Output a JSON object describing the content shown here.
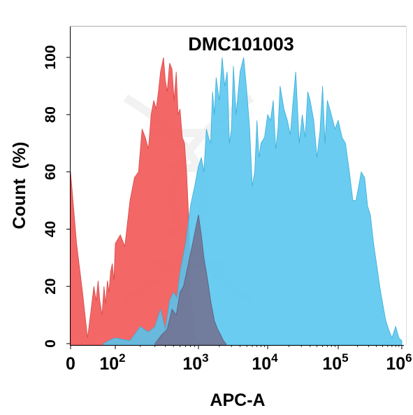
{
  "chart_data": {
    "type": "area",
    "title": "DMC101003",
    "xlabel": "APC-A",
    "ylabel": "Count  (%)",
    "x_scale": "biexponential",
    "xlim": [
      0,
      1000000
    ],
    "ylim": [
      0,
      110
    ],
    "grid": false,
    "y_ticks": [
      0,
      20,
      40,
      60,
      80,
      100
    ],
    "x_ticks": [
      {
        "value": 0,
        "base": "0",
        "exp": ""
      },
      {
        "value": 100,
        "base": "10",
        "exp": "2"
      },
      {
        "value": 1000,
        "base": "10",
        "exp": "3"
      },
      {
        "value": 10000,
        "base": "10",
        "exp": "4"
      },
      {
        "value": 100000,
        "base": "10",
        "exp": "5"
      },
      {
        "value": 1000000,
        "base": "10",
        "exp": "6"
      }
    ],
    "series": [
      {
        "color": "#f25a5a",
        "x": [
          0,
          3,
          6,
          10,
          14,
          18,
          22,
          26,
          30,
          36,
          42,
          48,
          55,
          62,
          70,
          80,
          90,
          100,
          115,
          130,
          150,
          170,
          190,
          210,
          230,
          250,
          270,
          290,
          310,
          330,
          350,
          380,
          400,
          420,
          450,
          480,
          510,
          540,
          570,
          600,
          640,
          680,
          720,
          760,
          800,
          850,
          900,
          950,
          1000,
          1100
        ],
        "y": [
          60,
          35,
          18,
          2,
          12,
          20,
          15,
          22,
          15,
          10,
          20,
          14,
          22,
          18,
          25,
          28,
          22,
          35,
          38,
          34,
          50,
          58,
          60,
          75,
          72,
          68,
          80,
          85,
          82,
          88,
          95,
          100,
          92,
          88,
          98,
          96,
          85,
          95,
          80,
          82,
          72,
          70,
          60,
          45,
          20,
          10,
          3,
          2,
          1,
          0
        ]
      },
      {
        "color": "#55c5ee",
        "x": [
          40,
          60,
          100,
          150,
          200,
          250,
          300,
          350,
          400,
          450,
          500,
          550,
          600,
          700,
          800,
          900,
          1000,
          1100,
          1200,
          1300,
          1400,
          1500,
          1600,
          1700,
          1800,
          2000,
          2200,
          2400,
          2600,
          2800,
          3000,
          3200,
          3500,
          4000,
          4500,
          5000,
          5500,
          6000,
          6500,
          7000,
          7500,
          8000,
          9000,
          10000,
          11000,
          12000,
          13000,
          14000,
          15000,
          17000,
          19000,
          21000,
          23000,
          25000,
          28000,
          31000,
          34000,
          37000,
          40000,
          45000,
          50000,
          55000,
          60000,
          65000,
          70000,
          80000,
          90000,
          100000,
          115000,
          130000,
          150000,
          170000,
          190000,
          210000,
          230000,
          260000,
          290000,
          320000,
          360000,
          400000,
          450000,
          500000,
          560000,
          620000,
          700000,
          800000,
          900000,
          1000000
        ],
        "y": [
          0,
          1,
          2,
          1,
          6,
          4,
          6,
          12,
          5,
          15,
          18,
          16,
          25,
          35,
          48,
          55,
          62,
          65,
          60,
          75,
          72,
          70,
          88,
          80,
          93,
          85,
          100,
          90,
          95,
          70,
          75,
          97,
          80,
          95,
          100,
          88,
          75,
          55,
          60,
          78,
          65,
          70,
          72,
          80,
          78,
          85,
          68,
          75,
          90,
          82,
          78,
          73,
          85,
          95,
          70,
          80,
          72,
          88,
          85,
          78,
          65,
          74,
          90,
          70,
          85,
          80,
          75,
          78,
          72,
          70,
          60,
          50,
          50,
          55,
          60,
          58,
          48,
          45,
          35,
          28,
          20,
          14,
          8,
          5,
          2,
          6,
          2,
          1
        ]
      },
      {
        "color": "#736e8e",
        "x": [
          300,
          360,
          420,
          480,
          540,
          600,
          660,
          720,
          780,
          850,
          920,
          1000,
          1100,
          1200,
          1300,
          1400,
          1500,
          1700,
          1900,
          2100,
          2300,
          2500
        ],
        "y": [
          0,
          3,
          5,
          12,
          10,
          18,
          20,
          25,
          30,
          35,
          40,
          45,
          38,
          30,
          25,
          20,
          15,
          8,
          5,
          3,
          1,
          0
        ]
      }
    ]
  }
}
